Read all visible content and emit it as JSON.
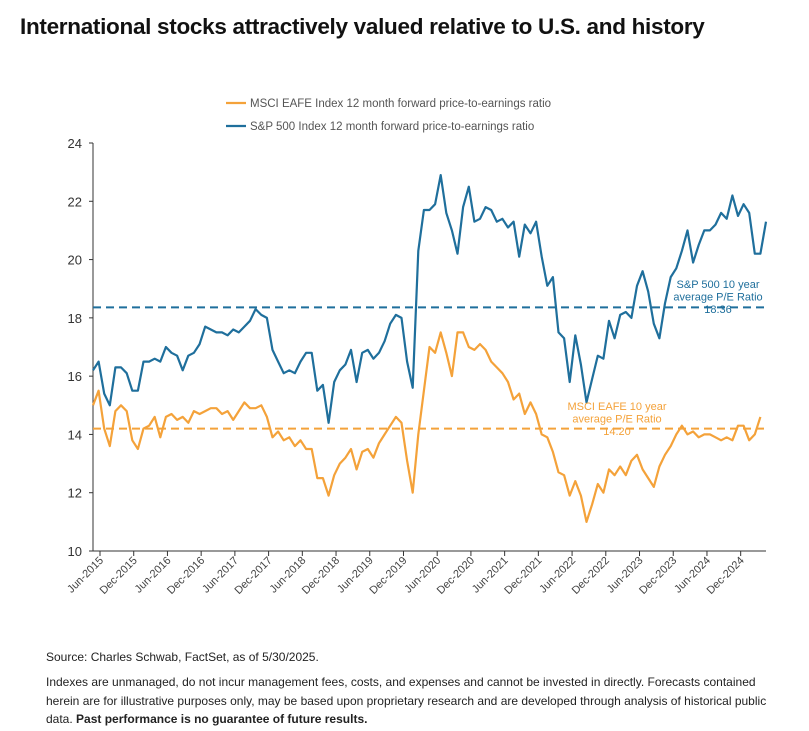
{
  "title": "International stocks attractively valued relative to U.S. and history",
  "chart_data": {
    "type": "line",
    "legend": "top-center",
    "grid": false,
    "ylim": [
      10,
      24
    ],
    "yticks": [
      10,
      12,
      14,
      16,
      18,
      20,
      22,
      24
    ],
    "x_tick_labels": [
      "Jun-2015",
      "Dec-2015",
      "Jun-2016",
      "Dec-2016",
      "Jun-2017",
      "Dec-2017",
      "Jun-2018",
      "Dec-2018",
      "Jun-2019",
      "Dec-2019",
      "Jun-2020",
      "Dec-2020",
      "Jun-2021",
      "Dec-2021",
      "Jun-2022",
      "Dec-2022",
      "Jun-2023",
      "Dec-2023",
      "Jun-2024",
      "Dec-2024"
    ],
    "x_start": "Jun-2015",
    "x_end": "May-2025",
    "series": [
      {
        "name": "S&P 500 Index 12 month forward price-to-earnings ratio",
        "color": "#1f6f9c",
        "values": [
          16.2,
          16.5,
          15.4,
          15.0,
          16.3,
          16.3,
          16.1,
          15.5,
          15.5,
          16.5,
          16.5,
          16.6,
          16.5,
          17.0,
          16.8,
          16.7,
          16.2,
          16.7,
          16.8,
          17.1,
          17.7,
          17.6,
          17.5,
          17.5,
          17.4,
          17.6,
          17.5,
          17.7,
          17.9,
          18.3,
          18.1,
          18.0,
          16.9,
          16.5,
          16.1,
          16.2,
          16.1,
          16.5,
          16.8,
          16.8,
          15.5,
          15.7,
          14.4,
          15.8,
          16.2,
          16.4,
          16.9,
          15.8,
          16.8,
          16.9,
          16.6,
          16.8,
          17.2,
          17.8,
          18.1,
          18.0,
          16.5,
          15.6,
          20.3,
          21.7,
          21.7,
          21.9,
          22.9,
          21.6,
          21.0,
          20.2,
          21.8,
          22.5,
          21.3,
          21.4,
          21.8,
          21.7,
          21.3,
          21.4,
          21.1,
          21.3,
          20.1,
          21.2,
          20.9,
          21.3,
          20.1,
          19.1,
          19.4,
          17.5,
          17.3,
          15.8,
          17.4,
          16.4,
          15.1,
          15.9,
          16.7,
          16.6,
          17.9,
          17.3,
          18.1,
          18.2,
          18.0,
          19.1,
          19.6,
          18.9,
          17.8,
          17.3,
          18.5,
          19.4,
          19.7,
          20.3,
          21.0,
          19.9,
          20.5,
          21.0,
          21.0,
          21.2,
          21.6,
          21.4,
          22.2,
          21.5,
          21.9,
          21.6,
          20.2,
          20.2,
          21.3
        ]
      },
      {
        "name": "MSCI EAFE Index 12 month forward price-to-earnings ratio",
        "color": "#f4a23a",
        "values": [
          15.0,
          15.5,
          14.2,
          13.6,
          14.8,
          15.0,
          14.8,
          13.8,
          13.5,
          14.2,
          14.3,
          14.6,
          13.9,
          14.6,
          14.7,
          14.5,
          14.6,
          14.4,
          14.8,
          14.7,
          14.8,
          14.9,
          14.9,
          14.7,
          14.8,
          14.5,
          14.8,
          15.1,
          14.9,
          14.9,
          15.0,
          14.6,
          13.9,
          14.1,
          13.8,
          13.9,
          13.6,
          13.8,
          13.5,
          13.5,
          12.5,
          12.5,
          11.9,
          12.6,
          13.0,
          13.2,
          13.5,
          12.8,
          13.4,
          13.5,
          13.2,
          13.7,
          14.0,
          14.3,
          14.6,
          14.4,
          13.1,
          12.0,
          14.0,
          15.5,
          17.0,
          16.8,
          17.5,
          16.8,
          16.0,
          17.5,
          17.5,
          17.0,
          16.9,
          17.1,
          16.9,
          16.5,
          16.3,
          16.1,
          15.8,
          15.2,
          15.4,
          14.7,
          15.1,
          14.7,
          14.0,
          13.9,
          13.4,
          12.7,
          12.6,
          11.9,
          12.4,
          11.9,
          11.0,
          11.6,
          12.3,
          12.0,
          12.8,
          12.6,
          12.9,
          12.6,
          13.1,
          13.3,
          12.8,
          12.5,
          12.2,
          12.9,
          13.3,
          13.6,
          14.0,
          14.3,
          14.0,
          14.1,
          13.9,
          14.0,
          14.0,
          13.9,
          13.8,
          13.9,
          13.8,
          14.3,
          14.3,
          13.8,
          14.0,
          14.6
        ]
      }
    ],
    "reference_lines": [
      {
        "series": "S&P 500",
        "value": 18.36,
        "label_lines": [
          "S&P 500 10 year",
          "average P/E Ratio",
          "18.36"
        ],
        "color": "#1f6f9c"
      },
      {
        "series": "MSCI EAFE",
        "value": 14.2,
        "label_lines": [
          "MSCI EAFE 10 year",
          "average P/E Ratio",
          "14.20"
        ],
        "color": "#f4a23a"
      }
    ]
  },
  "footer": {
    "source": "Source: Charles Schwab, FactSet, as of 5/30/2025.",
    "disclaimer": "Indexes are unmanaged, do not incur management fees, costs, and expenses and cannot be invested in directly. Forecasts contained herein are for illustrative purposes only, may be based upon proprietary research and are developed through analysis of historical public data.",
    "disclaimer_bold": "Past performance is no guarantee of future results."
  }
}
